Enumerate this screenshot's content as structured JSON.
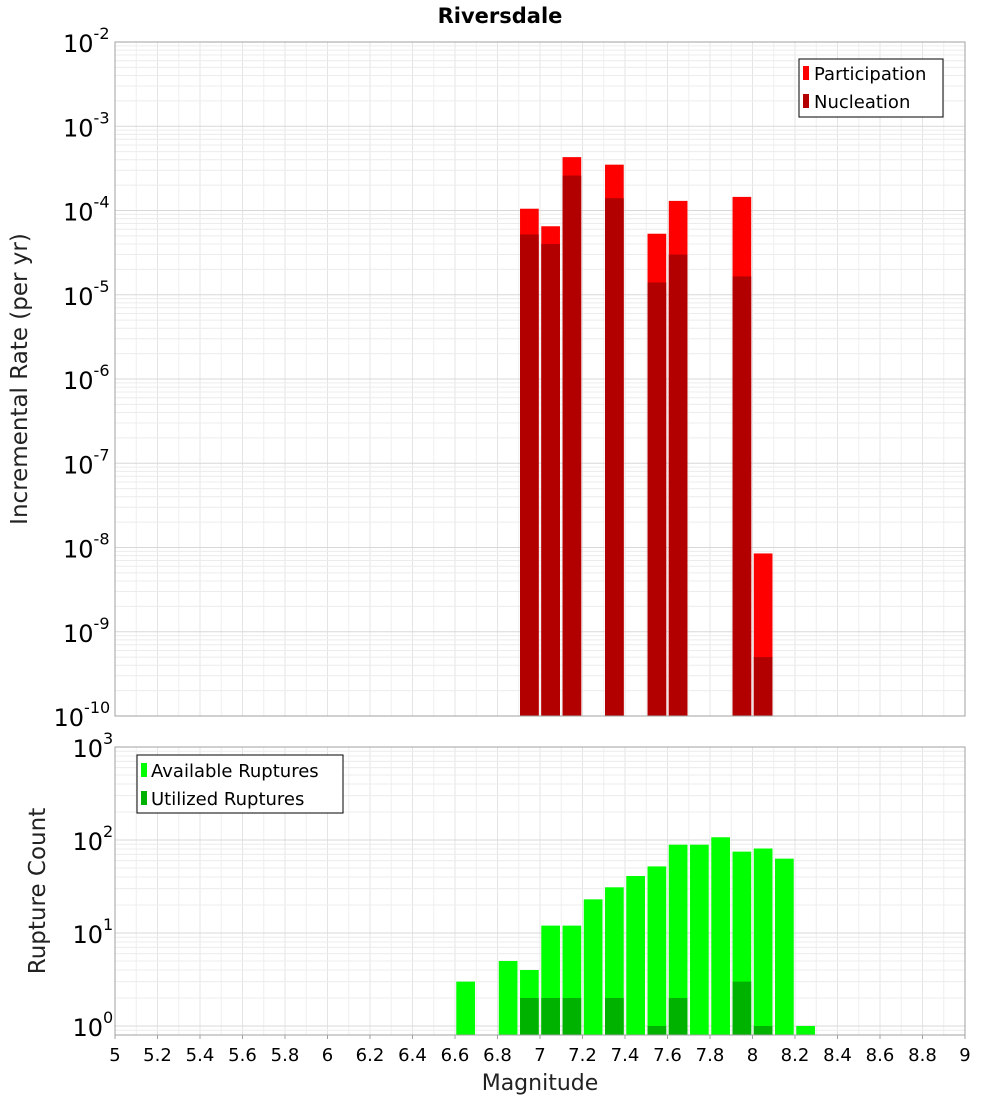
{
  "chart_data": [
    {
      "type": "bar",
      "title": "Riversdale",
      "xlabel": "",
      "ylabel": "Incremental Rate (per yr)",
      "yscale": "log",
      "ylim": [
        1e-10,
        0.01
      ],
      "xlim": [
        5,
        9
      ],
      "yticks": [
        "10",
        "10",
        "10",
        "10",
        "10",
        "10",
        "10",
        "10",
        "10"
      ],
      "ytick_exponents": [
        "-10",
        "-9",
        "-8",
        "-7",
        "-6",
        "-5",
        "-4",
        "-3",
        "-2"
      ],
      "legend_position": "top-right",
      "x": [
        6.95,
        7.05,
        7.15,
        7.35,
        7.55,
        7.65,
        7.95,
        8.05
      ],
      "series": [
        {
          "name": "Participation",
          "color": "#ff0000",
          "values": [
            0.000105,
            6.5e-05,
            0.00043,
            0.00035,
            5.3e-05,
            0.00013,
            0.000145,
            8.5e-09
          ]
        },
        {
          "name": "Nucleation",
          "color": "#b20000",
          "values": [
            5.2e-05,
            4e-05,
            0.00026,
            0.00014,
            1.4e-05,
            3e-05,
            1.65e-05,
            5e-10
          ]
        }
      ]
    },
    {
      "type": "bar",
      "title": "",
      "xlabel": "Magnitude",
      "ylabel": "Rupture Count",
      "yscale": "log",
      "ylim": [
        0.8,
        1000
      ],
      "xlim": [
        5,
        9
      ],
      "yticks": [
        "10",
        "10",
        "10",
        "10"
      ],
      "ytick_exponents": [
        "0",
        "1",
        "2",
        "3"
      ],
      "xticks": [
        "5",
        "5.2",
        "5.4",
        "5.6",
        "5.8",
        "6",
        "6.2",
        "6.4",
        "6.6",
        "6.8",
        "7",
        "7.2",
        "7.4",
        "7.6",
        "7.8",
        "8",
        "8.2",
        "8.4",
        "8.6",
        "8.8",
        "9"
      ],
      "legend_position": "top-left",
      "x": [
        6.65,
        6.85,
        6.95,
        7.05,
        7.15,
        7.25,
        7.35,
        7.45,
        7.55,
        7.65,
        7.75,
        7.85,
        7.95,
        8.05,
        8.15,
        8.25
      ],
      "series": [
        {
          "name": "Available Ruptures",
          "color": "#00ff00",
          "values": [
            3,
            5,
            4,
            12,
            12,
            23,
            31,
            41,
            52,
            89,
            89,
            107,
            75,
            81,
            63,
            1
          ]
        },
        {
          "name": "Utilized Ruptures",
          "color": "#00b200",
          "values": [
            0,
            0,
            2,
            2,
            2,
            0,
            2,
            0,
            1,
            2,
            0,
            0,
            3,
            1,
            0,
            0
          ]
        }
      ]
    }
  ]
}
